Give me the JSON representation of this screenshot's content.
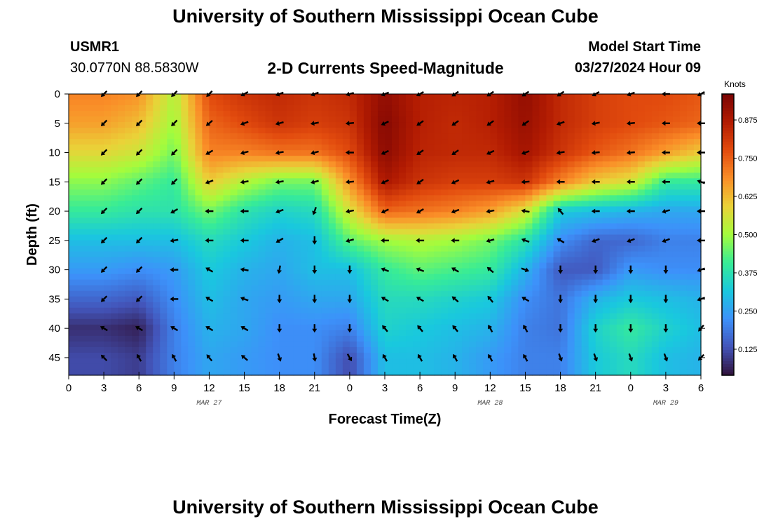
{
  "title": "University of Southern Mississippi Ocean Cube",
  "station": {
    "id": "USMR1",
    "coords": "30.0770N  88.5830W"
  },
  "subtitle": "2-D Currents Speed-Magnitude",
  "model": {
    "label": "Model Start Time",
    "time": "03/27/2024 Hour 09"
  },
  "footer_title": "University of Southern Mississippi Ocean Cube",
  "chart_data": {
    "type": "heatmap",
    "xlabel": "Forecast Time(Z)",
    "ylabel": "Depth (ft)",
    "colorbar_label": "Knots",
    "x_ticks": [
      "0",
      "3",
      "6",
      "9",
      "12",
      "15",
      "18",
      "21",
      "0",
      "3",
      "6",
      "9",
      "12",
      "15",
      "18",
      "21",
      "0",
      "3",
      "6"
    ],
    "x_hours": [
      0,
      3,
      6,
      9,
      12,
      15,
      18,
      21,
      24,
      27,
      30,
      33,
      36,
      39,
      42,
      45,
      48,
      51,
      54
    ],
    "date_labels": [
      {
        "label": "MAR 27",
        "hour": 12
      },
      {
        "label": "MAR 28",
        "hour": 36
      },
      {
        "label": "MAR 29",
        "hour": 51
      }
    ],
    "y_ticks": [
      0,
      5,
      10,
      15,
      20,
      25,
      30,
      35,
      40,
      45
    ],
    "xlim": [
      0,
      54
    ],
    "ylim": [
      0,
      48
    ],
    "colorbar_ticks": [
      "0.125",
      "0.250",
      "0.375",
      "0.500",
      "0.625",
      "0.750",
      "0.875"
    ],
    "colorbar_range": [
      0.04,
      0.96
    ],
    "vector_hours": [
      3,
      6,
      9,
      12,
      15,
      18,
      21,
      24,
      27,
      30,
      33,
      36,
      39,
      42,
      45,
      48,
      51,
      54
    ],
    "vector_depths": [
      0,
      5,
      10,
      15,
      20,
      25,
      30,
      35,
      40,
      45
    ],
    "speed_grid": [
      [
        0.7,
        0.68,
        0.52,
        0.78,
        0.82,
        0.84,
        0.82,
        0.84,
        0.92,
        0.86,
        0.85,
        0.86,
        0.92,
        0.84,
        0.8,
        0.78,
        0.78,
        0.76
      ],
      [
        0.66,
        0.62,
        0.5,
        0.74,
        0.78,
        0.82,
        0.8,
        0.82,
        0.94,
        0.86,
        0.84,
        0.86,
        0.91,
        0.84,
        0.8,
        0.78,
        0.76,
        0.74
      ],
      [
        0.58,
        0.55,
        0.46,
        0.7,
        0.7,
        0.72,
        0.72,
        0.78,
        0.93,
        0.85,
        0.84,
        0.84,
        0.89,
        0.82,
        0.76,
        0.72,
        0.66,
        0.6
      ],
      [
        0.48,
        0.44,
        0.4,
        0.6,
        0.52,
        0.46,
        0.46,
        0.68,
        0.88,
        0.82,
        0.8,
        0.8,
        0.82,
        0.7,
        0.6,
        0.56,
        0.4,
        0.4
      ],
      [
        0.4,
        0.38,
        0.38,
        0.46,
        0.38,
        0.34,
        0.36,
        0.56,
        0.74,
        0.72,
        0.7,
        0.66,
        0.56,
        0.32,
        0.3,
        0.28,
        0.26,
        0.26
      ],
      [
        0.3,
        0.3,
        0.3,
        0.36,
        0.32,
        0.28,
        0.3,
        0.44,
        0.5,
        0.52,
        0.5,
        0.46,
        0.38,
        0.22,
        0.16,
        0.16,
        0.2,
        0.2
      ],
      [
        0.24,
        0.22,
        0.24,
        0.32,
        0.28,
        0.26,
        0.3,
        0.3,
        0.4,
        0.44,
        0.42,
        0.4,
        0.28,
        0.14,
        0.14,
        0.24,
        0.22,
        0.22
      ],
      [
        0.16,
        0.14,
        0.22,
        0.3,
        0.26,
        0.24,
        0.26,
        0.26,
        0.36,
        0.36,
        0.34,
        0.32,
        0.22,
        0.18,
        0.28,
        0.32,
        0.3,
        0.28
      ],
      [
        0.08,
        0.06,
        0.2,
        0.28,
        0.26,
        0.22,
        0.22,
        0.2,
        0.34,
        0.32,
        0.3,
        0.28,
        0.2,
        0.18,
        0.34,
        0.4,
        0.34,
        0.3
      ],
      [
        0.12,
        0.1,
        0.2,
        0.26,
        0.24,
        0.22,
        0.22,
        0.12,
        0.3,
        0.3,
        0.28,
        0.24,
        0.2,
        0.2,
        0.32,
        0.36,
        0.3,
        0.28
      ]
    ],
    "direction_grid": [
      [
        225,
        225,
        225,
        225,
        240,
        250,
        250,
        255,
        250,
        240,
        235,
        235,
        235,
        235,
        240,
        250,
        270,
        240
      ],
      [
        225,
        225,
        225,
        230,
        250,
        255,
        260,
        265,
        245,
        235,
        235,
        235,
        235,
        250,
        260,
        265,
        270,
        270
      ],
      [
        225,
        225,
        225,
        240,
        255,
        260,
        255,
        270,
        245,
        235,
        235,
        245,
        250,
        260,
        265,
        265,
        270,
        270
      ],
      [
        225,
        225,
        225,
        250,
        260,
        260,
        255,
        265,
        245,
        235,
        245,
        255,
        265,
        270,
        270,
        270,
        270,
        290
      ],
      [
        225,
        225,
        240,
        270,
        270,
        250,
        200,
        260,
        245,
        240,
        250,
        260,
        280,
        320,
        270,
        270,
        255,
        270
      ],
      [
        225,
        225,
        260,
        270,
        270,
        240,
        180,
        255,
        270,
        270,
        270,
        255,
        290,
        300,
        250,
        250,
        250,
        270
      ],
      [
        225,
        225,
        270,
        300,
        280,
        190,
        180,
        180,
        290,
        290,
        300,
        310,
        110,
        180,
        180,
        180,
        180,
        250
      ],
      [
        225,
        225,
        270,
        300,
        290,
        180,
        180,
        180,
        300,
        300,
        310,
        320,
        300,
        180,
        180,
        180,
        180,
        250
      ],
      [
        300,
        300,
        300,
        300,
        300,
        180,
        180,
        180,
        320,
        320,
        320,
        330,
        330,
        180,
        180,
        180,
        180,
        220
      ],
      [
        315,
        330,
        330,
        320,
        310,
        160,
        170,
        150,
        330,
        330,
        330,
        330,
        330,
        160,
        160,
        160,
        160,
        225
      ]
    ]
  }
}
